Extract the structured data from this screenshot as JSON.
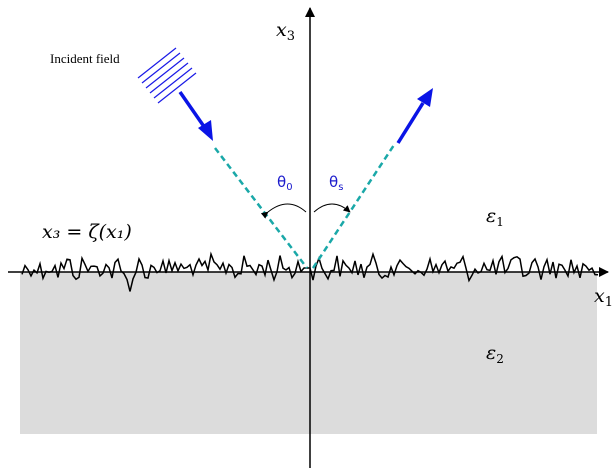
{
  "labels": {
    "incident": "Incident field",
    "x3": "x",
    "x3_sub": "3",
    "x1": "x",
    "x1_sub": "1",
    "surface_eq": "x₃ = ζ(x₁)",
    "theta0": "θ",
    "theta0_sub": "0",
    "thetas": "θ",
    "thetas_sub": "s",
    "eps1": "ε",
    "eps1_sub": "1",
    "eps2": "ε",
    "eps2_sub": "2"
  },
  "colors": {
    "arrow": "#0a14e6",
    "dashed": "#1aa8a8",
    "substrate": "#dcdcdc",
    "angle_text": "#1a1acc"
  }
}
